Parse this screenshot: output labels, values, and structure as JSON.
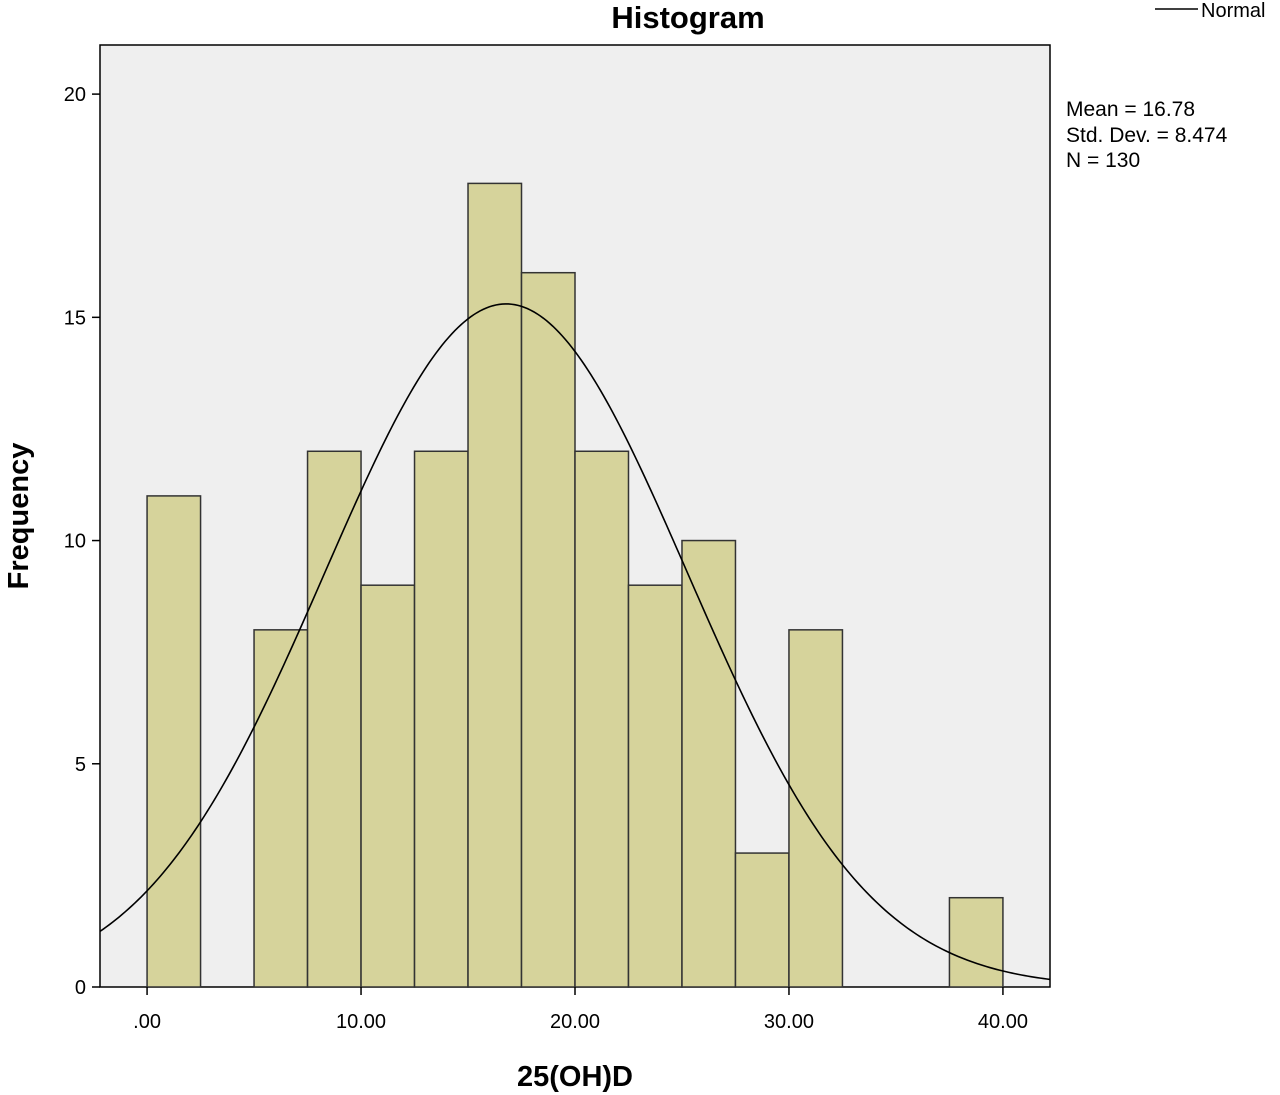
{
  "chart_data": {
    "type": "bar",
    "title": "Histogram",
    "xlabel": "25(OH)D",
    "ylabel": "Frequency",
    "xlim": [
      -2.2,
      42.2
    ],
    "ylim": [
      0,
      21.1
    ],
    "bin_width": 2.5,
    "bins": [
      {
        "x0": 0.0,
        "x1": 2.5,
        "count": 11
      },
      {
        "x0": 5.0,
        "x1": 7.5,
        "count": 8
      },
      {
        "x0": 7.5,
        "x1": 10.0,
        "count": 12
      },
      {
        "x0": 10.0,
        "x1": 12.5,
        "count": 9
      },
      {
        "x0": 12.5,
        "x1": 15.0,
        "count": 12
      },
      {
        "x0": 15.0,
        "x1": 17.5,
        "count": 18
      },
      {
        "x0": 17.5,
        "x1": 20.0,
        "count": 16
      },
      {
        "x0": 20.0,
        "x1": 22.5,
        "count": 12
      },
      {
        "x0": 22.5,
        "x1": 25.0,
        "count": 9
      },
      {
        "x0": 25.0,
        "x1": 27.5,
        "count": 10
      },
      {
        "x0": 27.5,
        "x1": 30.0,
        "count": 3
      },
      {
        "x0": 30.0,
        "x1": 32.5,
        "count": 8
      },
      {
        "x0": 37.5,
        "x1": 40.0,
        "count": 2
      }
    ],
    "x_ticks": [
      {
        "value": 0,
        "label": ".00"
      },
      {
        "value": 10,
        "label": "10.00"
      },
      {
        "value": 20,
        "label": "20.00"
      },
      {
        "value": 30,
        "label": "30.00"
      },
      {
        "value": 40,
        "label": "40.00"
      }
    ],
    "y_ticks": [
      {
        "value": 0,
        "label": "0"
      },
      {
        "value": 5,
        "label": "5"
      },
      {
        "value": 10,
        "label": "10"
      },
      {
        "value": 15,
        "label": "15"
      },
      {
        "value": 20,
        "label": "20"
      }
    ],
    "normal_curve": {
      "mean": 16.78,
      "std": 8.474,
      "n": 130
    },
    "stats": [
      "Mean = 16.78",
      "Std. Dev. = 8.474",
      "N = 130"
    ],
    "legend": [
      {
        "name": "Normal",
        "type": "line"
      }
    ],
    "legend_position": "top-right",
    "grid": false,
    "colors": {
      "plot_background": "#efefef",
      "bar_fill": "#d6d39b",
      "bar_stroke": "#333333",
      "curve": "#000000",
      "frame": "#000000"
    }
  }
}
